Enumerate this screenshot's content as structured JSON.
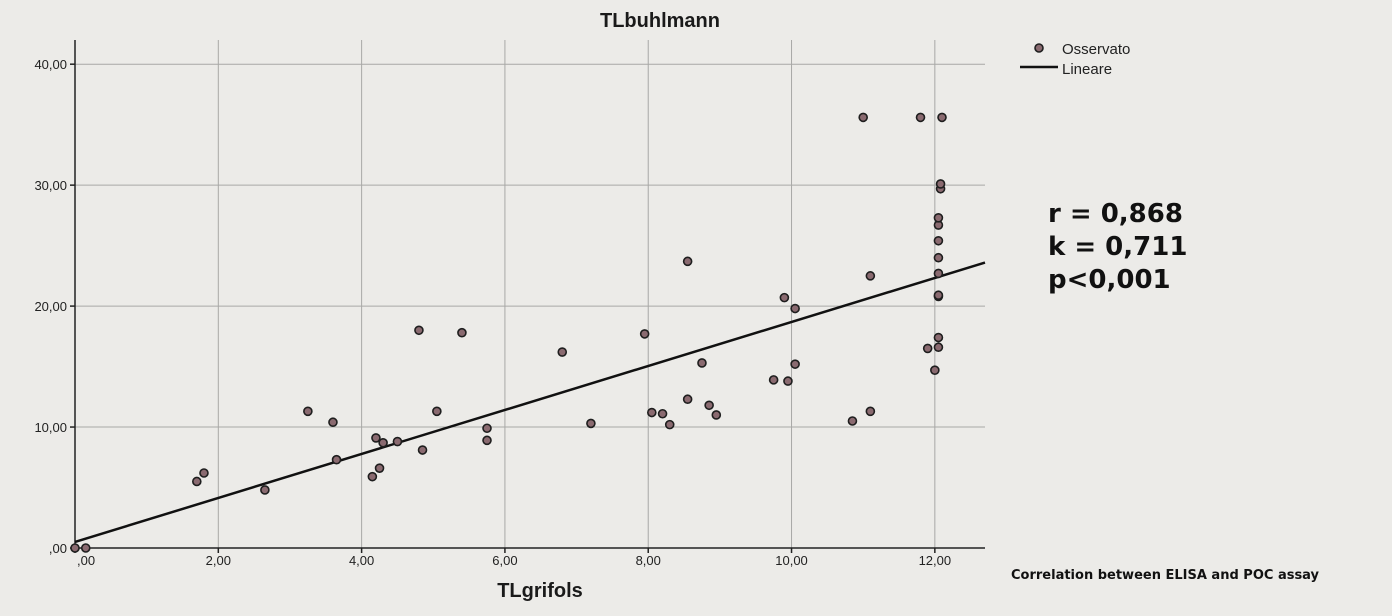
{
  "chart_data": {
    "type": "scatter",
    "title": "TLbuhlmann",
    "xlabel": "TLgrifols",
    "ylabel": "",
    "xlim": [
      0,
      12.7
    ],
    "ylim": [
      0,
      42
    ],
    "grid": true,
    "x_ticks": [
      0,
      2,
      4,
      6,
      8,
      10,
      12
    ],
    "x_tick_labels": [
      ",00",
      "2,00",
      "4,00",
      "6,00",
      "8,00",
      "10,00",
      "12,00"
    ],
    "y_ticks": [
      0,
      10,
      20,
      30,
      40
    ],
    "y_tick_labels": [
      ",00",
      "10,00",
      "20,00",
      "30,00",
      "40,00"
    ],
    "legend": {
      "placement": "top-right",
      "entries": [
        {
          "label": "Osservato",
          "marker": "point"
        },
        {
          "label": "Lineare",
          "marker": "line"
        }
      ]
    },
    "series": [
      {
        "name": "Osservato",
        "kind": "points",
        "points": [
          [
            0.0,
            0.0
          ],
          [
            0.15,
            0.0
          ],
          [
            1.7,
            5.5
          ],
          [
            1.8,
            6.2
          ],
          [
            2.65,
            4.8
          ],
          [
            3.25,
            11.3
          ],
          [
            3.6,
            10.4
          ],
          [
            3.65,
            7.3
          ],
          [
            4.15,
            5.9
          ],
          [
            4.2,
            9.1
          ],
          [
            4.25,
            6.6
          ],
          [
            4.3,
            8.7
          ],
          [
            4.5,
            8.8
          ],
          [
            4.8,
            18.0
          ],
          [
            4.85,
            8.1
          ],
          [
            5.05,
            11.3
          ],
          [
            5.4,
            17.8
          ],
          [
            5.75,
            9.9
          ],
          [
            5.75,
            8.9
          ],
          [
            6.8,
            16.2
          ],
          [
            7.2,
            10.3
          ],
          [
            7.95,
            17.7
          ],
          [
            8.05,
            11.2
          ],
          [
            8.2,
            11.1
          ],
          [
            8.3,
            10.2
          ],
          [
            8.55,
            12.3
          ],
          [
            8.55,
            23.7
          ],
          [
            8.75,
            15.3
          ],
          [
            8.85,
            11.8
          ],
          [
            8.95,
            11.0
          ],
          [
            9.75,
            13.9
          ],
          [
            9.9,
            20.7
          ],
          [
            9.95,
            13.8
          ],
          [
            10.05,
            19.8
          ],
          [
            10.05,
            15.2
          ],
          [
            10.85,
            10.5
          ],
          [
            11.0,
            35.6
          ],
          [
            11.1,
            22.5
          ],
          [
            11.1,
            11.3
          ],
          [
            11.8,
            35.6
          ],
          [
            11.9,
            16.5
          ],
          [
            12.0,
            14.7
          ],
          [
            12.05,
            16.6
          ],
          [
            12.05,
            17.4
          ],
          [
            12.05,
            20.8
          ],
          [
            12.05,
            20.9
          ],
          [
            12.05,
            22.7
          ],
          [
            12.05,
            24.0
          ],
          [
            12.05,
            25.4
          ],
          [
            12.05,
            26.7
          ],
          [
            12.05,
            27.3
          ],
          [
            12.08,
            29.7
          ],
          [
            12.08,
            30.1
          ],
          [
            12.1,
            35.6
          ]
        ]
      },
      {
        "name": "Lineare",
        "kind": "line",
        "points": [
          [
            0,
            0.5
          ],
          [
            12.7,
            23.6
          ]
        ]
      }
    ],
    "annotations": {
      "stats": [
        "r = 0,868",
        "k = 0,711",
        "p<0,001"
      ],
      "caption": "Correlation between ELISA and POC assay"
    }
  }
}
